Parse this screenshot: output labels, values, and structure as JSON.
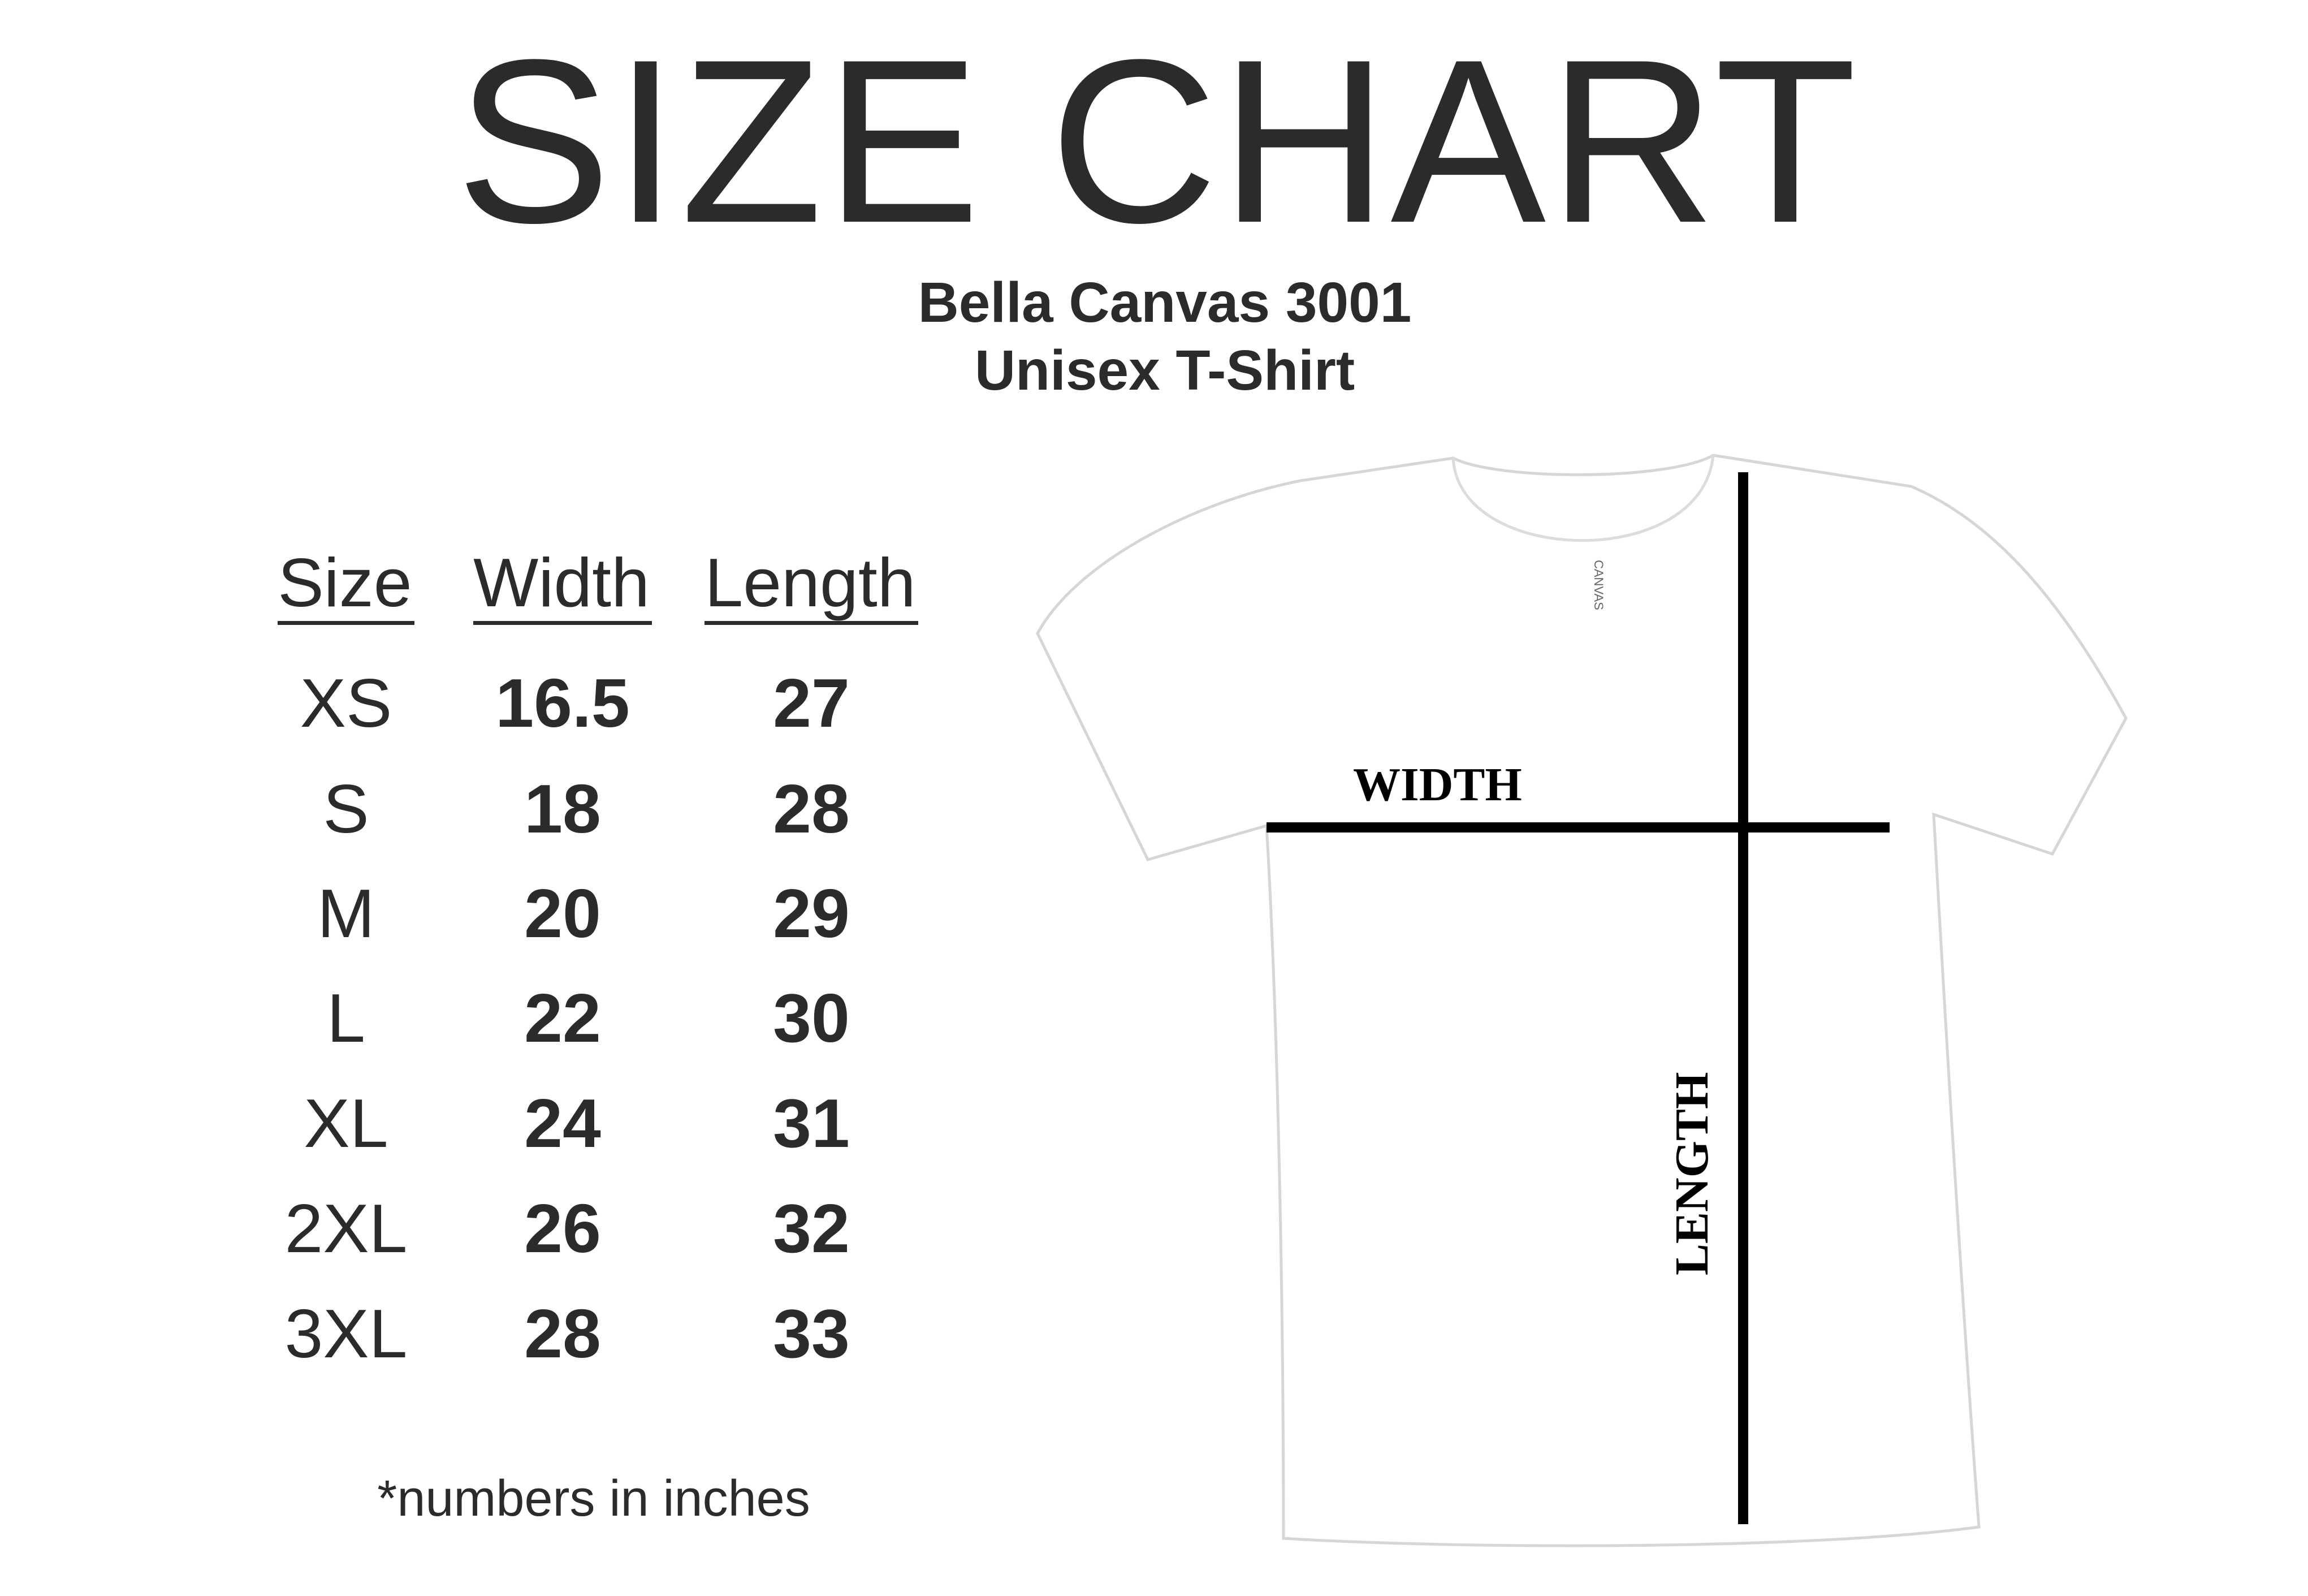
{
  "title": "SIZE CHART",
  "subtitle": {
    "product": "Bella Canvas 3001",
    "style": "Unisex T-Shirt"
  },
  "table": {
    "headers": [
      "Size",
      "Width",
      "Length"
    ],
    "rows": [
      [
        "XS",
        "16.5",
        "27"
      ],
      [
        "S",
        "18",
        "28"
      ],
      [
        "M",
        "20",
        "29"
      ],
      [
        "L",
        "22",
        "30"
      ],
      [
        "XL",
        "24",
        "31"
      ],
      [
        "2XL",
        "26",
        "32"
      ],
      [
        "3XL",
        "28",
        "33"
      ]
    ]
  },
  "footnote": "*numbers in inches",
  "diagram": {
    "width_label": "WIDTH",
    "length_label": "LENGTH",
    "tag_text": "CANVAS"
  },
  "colors": {
    "text": "#2b2b2b",
    "lines": "#000000",
    "shirt": "#ffffff"
  }
}
